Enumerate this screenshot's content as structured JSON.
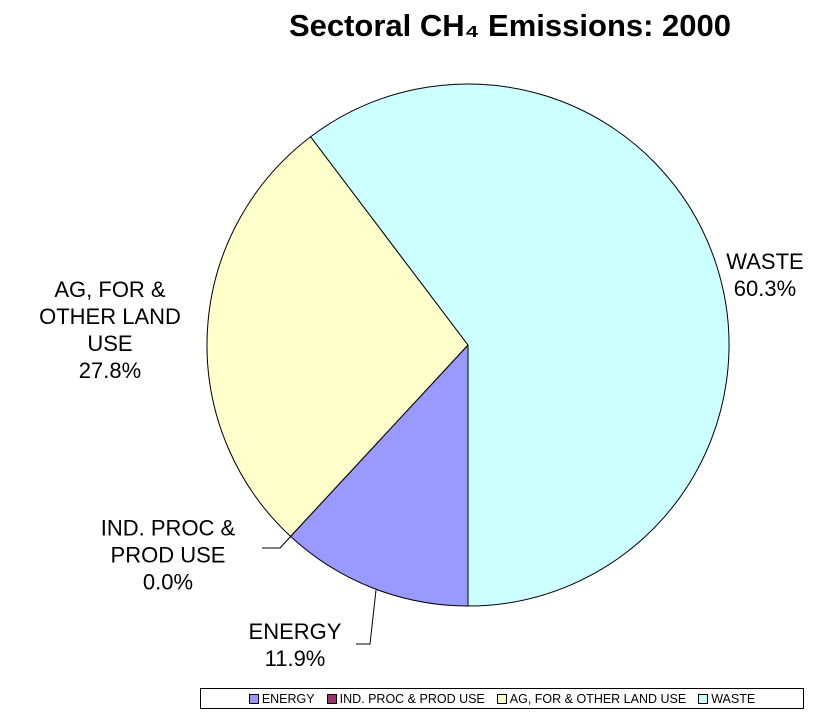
{
  "chart_data": {
    "type": "pie",
    "title": "Sectoral CH₄ Emissions: 2000",
    "categories": [
      "ENERGY",
      "IND. PROC & PROD USE",
      "AG, FOR & OTHER LAND USE",
      "WASTE"
    ],
    "values": [
      11.9,
      0.0,
      27.8,
      60.3
    ],
    "value_labels": [
      "11.9%",
      "0.0%",
      "27.8%",
      "60.3%"
    ],
    "colors": [
      "#9999ff",
      "#993366",
      "#ffffcc",
      "#ccffff"
    ],
    "legend": "bottom"
  }
}
